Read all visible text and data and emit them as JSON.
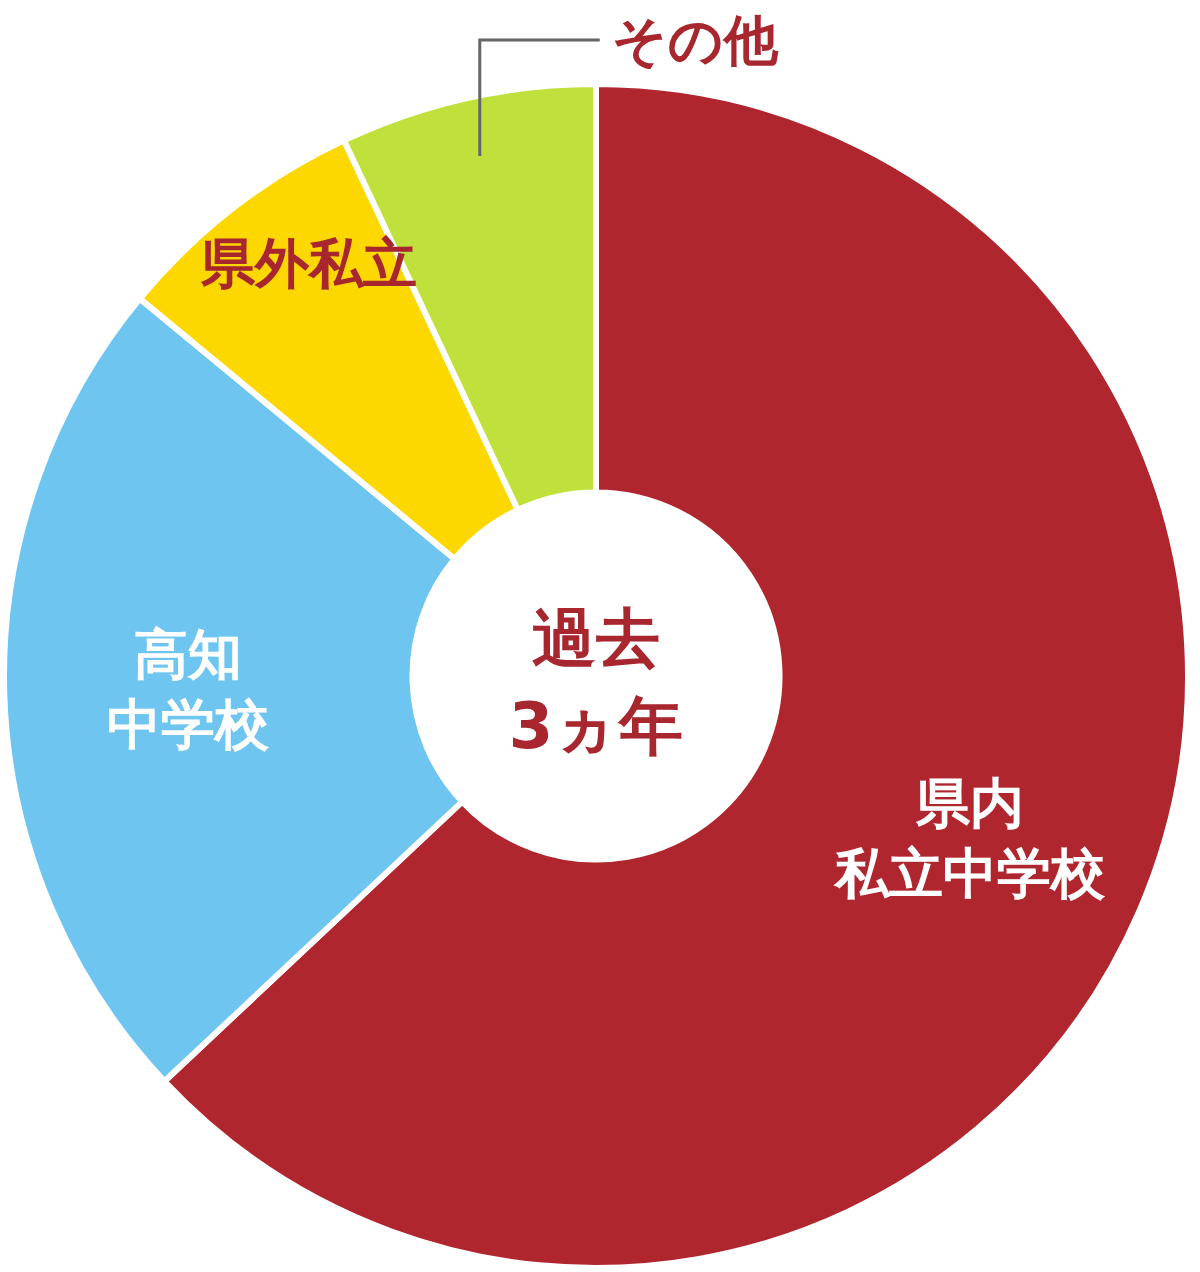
{
  "chart_data": {
    "type": "donut",
    "title": "過去",
    "subtitle": "3ヵ年",
    "categories": [
      "県内私立中学校",
      "高知中学校",
      "県外私立",
      "その他"
    ],
    "values": [
      63,
      23,
      7,
      7
    ],
    "colors": [
      "#b0262e",
      "#6ec6f0",
      "#fcd800",
      "#c0e03c"
    ]
  }
}
